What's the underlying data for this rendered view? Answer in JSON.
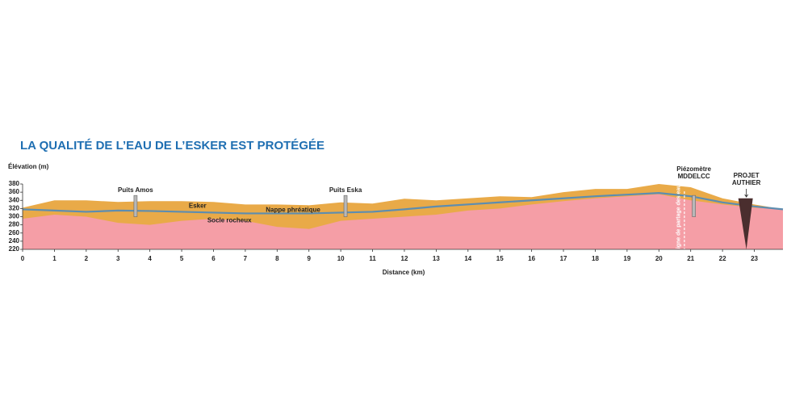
{
  "chart_data": {
    "type": "profile",
    "title": "LA QUALITÉ DE L’EAU DE L’ESKER EST PROTÉGÉE",
    "y_label": "Élévation (m)",
    "x_label": "Distance (km)",
    "x": [
      0,
      1,
      2,
      3,
      4,
      5,
      6,
      7,
      8,
      9,
      10,
      11,
      12,
      13,
      14,
      15,
      16,
      17,
      18,
      19,
      20,
      21,
      22,
      23,
      23.9
    ],
    "series": [
      {
        "name": "Esker",
        "color": "#e9aa48",
        "kind": "area",
        "values": [
          322,
          340,
          340,
          336,
          338,
          338,
          336,
          330,
          330,
          328,
          335,
          332,
          344,
          340,
          345,
          350,
          348,
          360,
          368,
          368,
          380,
          372,
          345,
          330,
          318
        ]
      },
      {
        "name": "Socle rocheux",
        "color": "#f59ea6",
        "kind": "area",
        "values": [
          295,
          305,
          300,
          285,
          280,
          290,
          295,
          290,
          275,
          270,
          290,
          295,
          300,
          305,
          315,
          320,
          330,
          338,
          345,
          350,
          355,
          340,
          330,
          322,
          318
        ]
      },
      {
        "name": "Nappe phréatique",
        "color": "#5d8db0",
        "kind": "line",
        "values": [
          318,
          315,
          312,
          315,
          314,
          312,
          310,
          308,
          308,
          308,
          310,
          312,
          318,
          325,
          330,
          335,
          340,
          345,
          350,
          354,
          358,
          350,
          335,
          325,
          318
        ]
      }
    ],
    "annotations": [
      {
        "text": "Puits Amos",
        "x": 3.55,
        "kind": "well"
      },
      {
        "text": "Puits Eska",
        "x": 10.15,
        "kind": "well"
      },
      {
        "text": "Piézomètre MDDELCC",
        "x": 21.1,
        "kind": "well"
      },
      {
        "text": "PROJET AUTHIER",
        "x": 22.75,
        "kind": "pit"
      },
      {
        "text": "Ligne de partage des eaux",
        "x": 20.7,
        "kind": "divide"
      }
    ],
    "xlim": [
      0,
      23.9
    ],
    "ylim": [
      220,
      380
    ],
    "xticks": [
      0,
      1,
      2,
      3,
      4,
      5,
      6,
      7,
      8,
      9,
      10,
      11,
      12,
      13,
      14,
      15,
      16,
      17,
      18,
      19,
      20,
      21,
      22,
      23
    ],
    "yticks": [
      220,
      240,
      260,
      280,
      300,
      320,
      340,
      360,
      380
    ]
  }
}
